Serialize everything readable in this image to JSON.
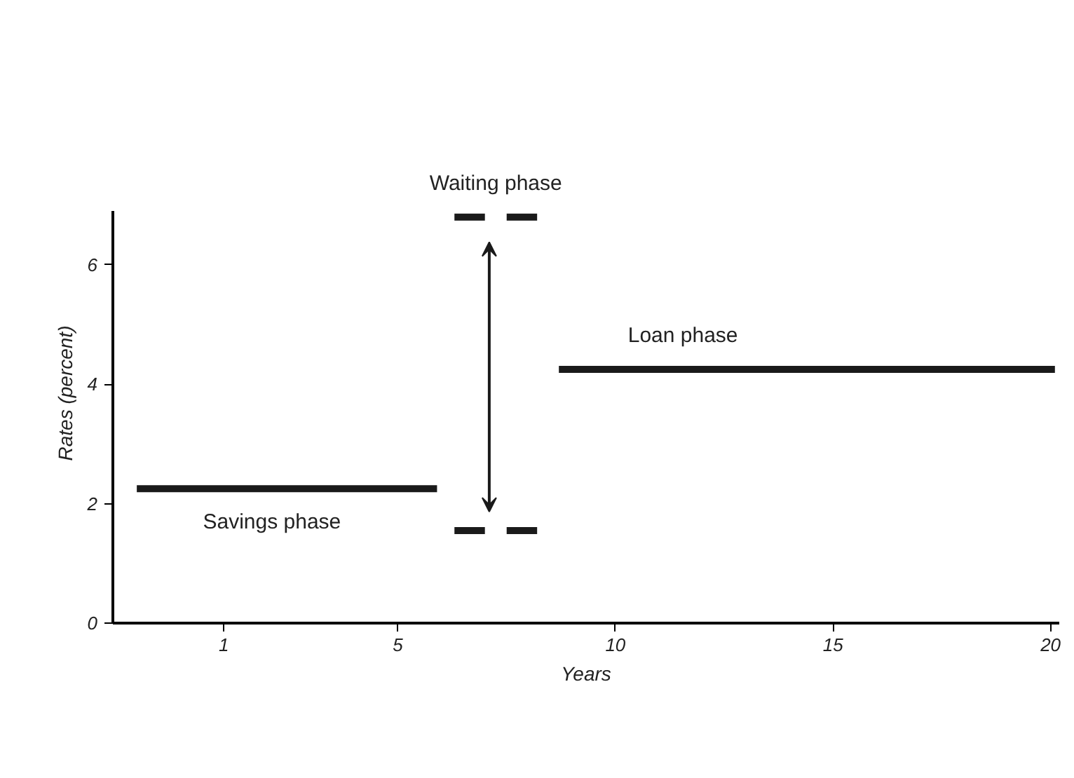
{
  "chart_data": {
    "type": "line",
    "xlabel": "Years",
    "ylabel": "Rates (percent)",
    "xlim": [
      -1.55,
      20.2
    ],
    "ylim": [
      0,
      6.9
    ],
    "xticks": [
      1,
      5,
      10,
      15,
      20
    ],
    "yticks": [
      0,
      2,
      4,
      6
    ],
    "grid": false,
    "marker": "none",
    "line_style": "solid",
    "series": [
      {
        "name": "Savings phase",
        "color": "#1a1a1a",
        "x": [
          -1.0,
          5.9
        ],
        "values": [
          2.25,
          2.25
        ]
      },
      {
        "name": "Loan phase",
        "color": "#1a1a1a",
        "x": [
          8.7,
          20.1
        ],
        "values": [
          4.25,
          4.25
        ]
      },
      {
        "name": "Waiting phase",
        "color": "#1a1a1a",
        "x": [
          6.3,
          7.0,
          7.2,
          7.5,
          8.2
        ],
        "values": [
          6.8,
          6.8,
          null,
          6.8,
          6.8
        ]
      },
      {
        "color": "#1a1a1a",
        "x": [
          6.3,
          7.0,
          7.2,
          7.5,
          8.2
        ],
        "values": [
          1.55,
          1.55,
          null,
          1.55,
          1.55
        ]
      }
    ]
  }
}
